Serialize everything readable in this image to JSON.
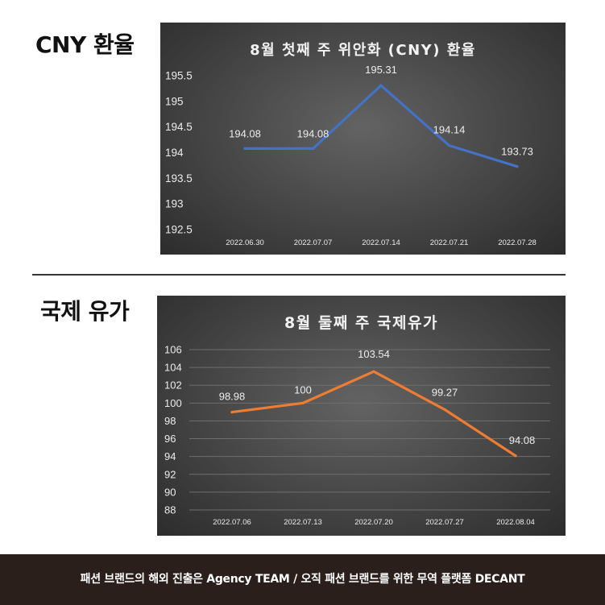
{
  "sections": {
    "cny_title": "CNY 환율",
    "oil_title": "국제 유가"
  },
  "footer": {
    "text": "패션 브랜드의 해외 진출은 Agency TEAM  / 오직 패션 브랜드를 위한 무역 플랫폼 DECANT"
  },
  "chart_data": [
    {
      "type": "line",
      "title": "8월 첫째 주 위안화 (CNY) 환율",
      "categories": [
        "2022.06.30",
        "2022.07.07",
        "2022.07.14",
        "2022.07.21",
        "2022.07.28"
      ],
      "series": [
        {
          "values": [
            194.08,
            194.08,
            195.31,
            194.14,
            193.73
          ]
        }
      ],
      "data_labels": [
        "194.08",
        "194.08",
        "195.31",
        "194.14",
        "193.73"
      ],
      "y_ticks": [
        "195.5",
        "195",
        "194.5",
        "194",
        "193.5",
        "193",
        "192.5"
      ],
      "ylim": [
        192.5,
        195.5
      ],
      "grid": false,
      "line_color": "#4472c4"
    },
    {
      "type": "line",
      "title": "8월 둘째 주 국제유가",
      "categories": [
        "2022.07.06",
        "2022.07.13",
        "2022.07.20",
        "2022.07.27",
        "2022.08.04"
      ],
      "series": [
        {
          "values": [
            98.98,
            100,
            103.54,
            99.27,
            94.08
          ]
        }
      ],
      "data_labels": [
        "98.98",
        "100",
        "103.54",
        "99.27",
        "94.08"
      ],
      "y_ticks": [
        "106",
        "104",
        "102",
        "100",
        "98",
        "96",
        "94",
        "92",
        "90",
        "88"
      ],
      "ylim": [
        88,
        106
      ],
      "grid": true,
      "line_color": "#ed7d31"
    }
  ]
}
